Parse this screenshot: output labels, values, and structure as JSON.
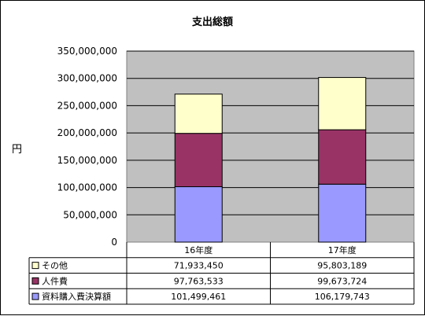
{
  "chart_data": {
    "type": "bar",
    "stacked": true,
    "title": "支出総額",
    "ylabel": "円",
    "xlabel": "",
    "categories": [
      "16年度",
      "17年度"
    ],
    "ylim": [
      0,
      350000000
    ],
    "yticks": [
      "0",
      "50,000,000",
      "100,000,000",
      "150,000,000",
      "200,000,000",
      "250,000,000",
      "300,000,000",
      "350,000,000"
    ],
    "grid": true,
    "legend": "data-table",
    "series": [
      {
        "name": "資料購入費決算額",
        "values": [
          101499461,
          106179743
        ],
        "labels": [
          "101,499,461",
          "106,179,743"
        ],
        "color": "#9999ff"
      },
      {
        "name": "人件費",
        "values": [
          97763533,
          99673724
        ],
        "labels": [
          "97,763,533",
          "99,673,724"
        ],
        "color": "#993366"
      },
      {
        "name": "その他",
        "values": [
          71933450,
          95803189
        ],
        "labels": [
          "71,933,450",
          "95,803,189"
        ],
        "color": "#ffffcc"
      }
    ],
    "table_order": [
      2,
      1,
      0
    ],
    "plot_background": "#c0c0c0"
  }
}
